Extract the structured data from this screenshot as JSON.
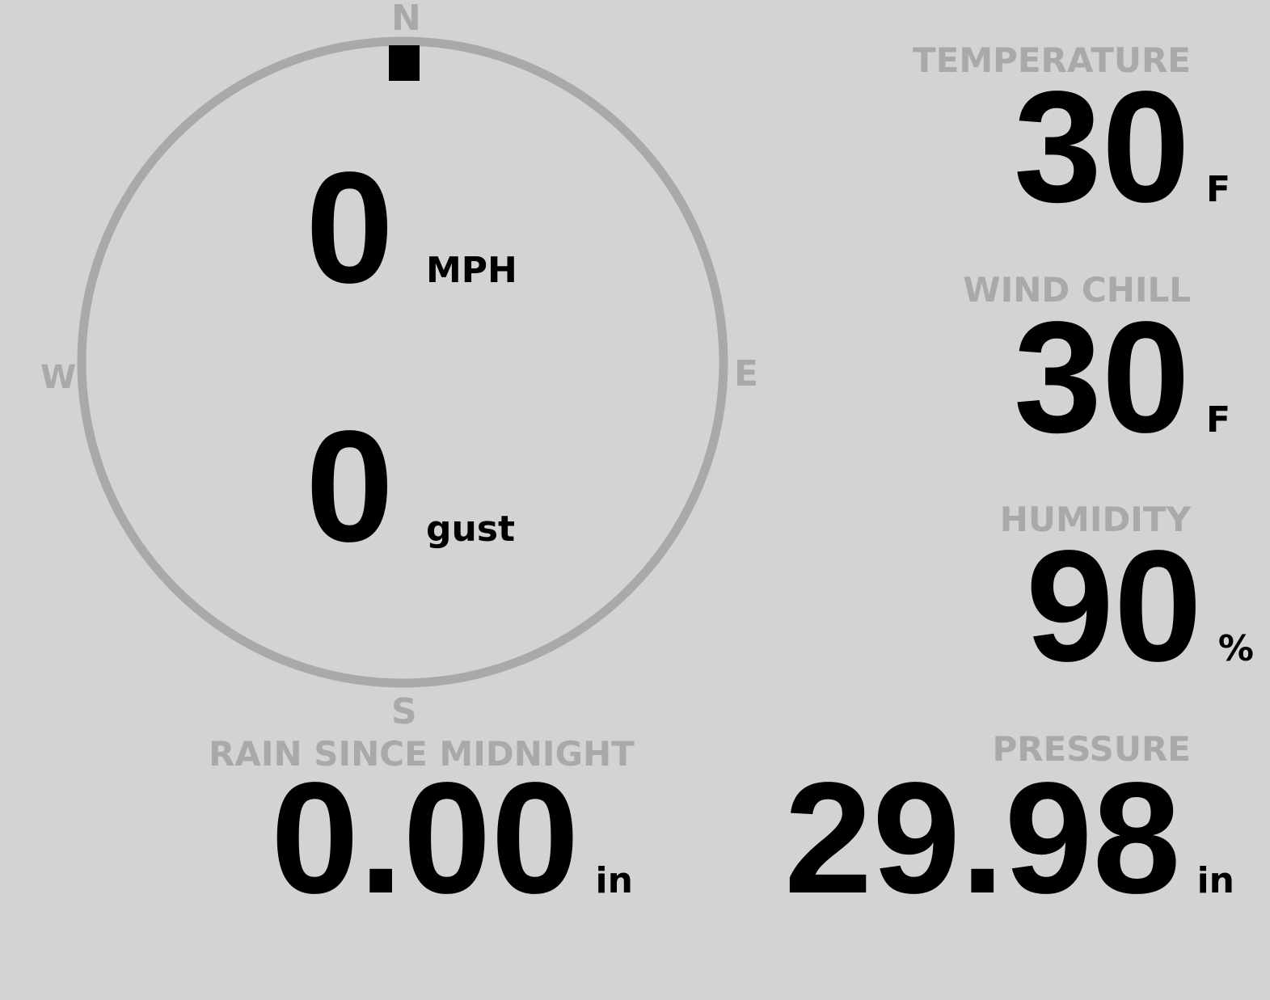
{
  "compass": {
    "north": "N",
    "south": "S",
    "east": "E",
    "west": "W",
    "wind_direction_deg": 0,
    "ring_color": "#a9a9a9",
    "wind_speed": "0",
    "wind_speed_unit": "MPH",
    "gust": "0",
    "gust_unit": "gust"
  },
  "temperature": {
    "label": "TEMPERATURE",
    "value": "30",
    "unit": "F"
  },
  "wind_chill": {
    "label": "WIND CHILL",
    "value": "30",
    "unit": "F"
  },
  "humidity": {
    "label": "HUMIDITY",
    "value": "90",
    "unit": "%"
  },
  "rain": {
    "label": "RAIN SINCE MIDNIGHT",
    "value": "0.00",
    "unit": "in"
  },
  "pressure": {
    "label": "PRESSURE",
    "value": "29.98",
    "unit": "in"
  },
  "colors": {
    "background": "#d3d3d3",
    "label": "#a9a9a9",
    "value": "#000000"
  }
}
